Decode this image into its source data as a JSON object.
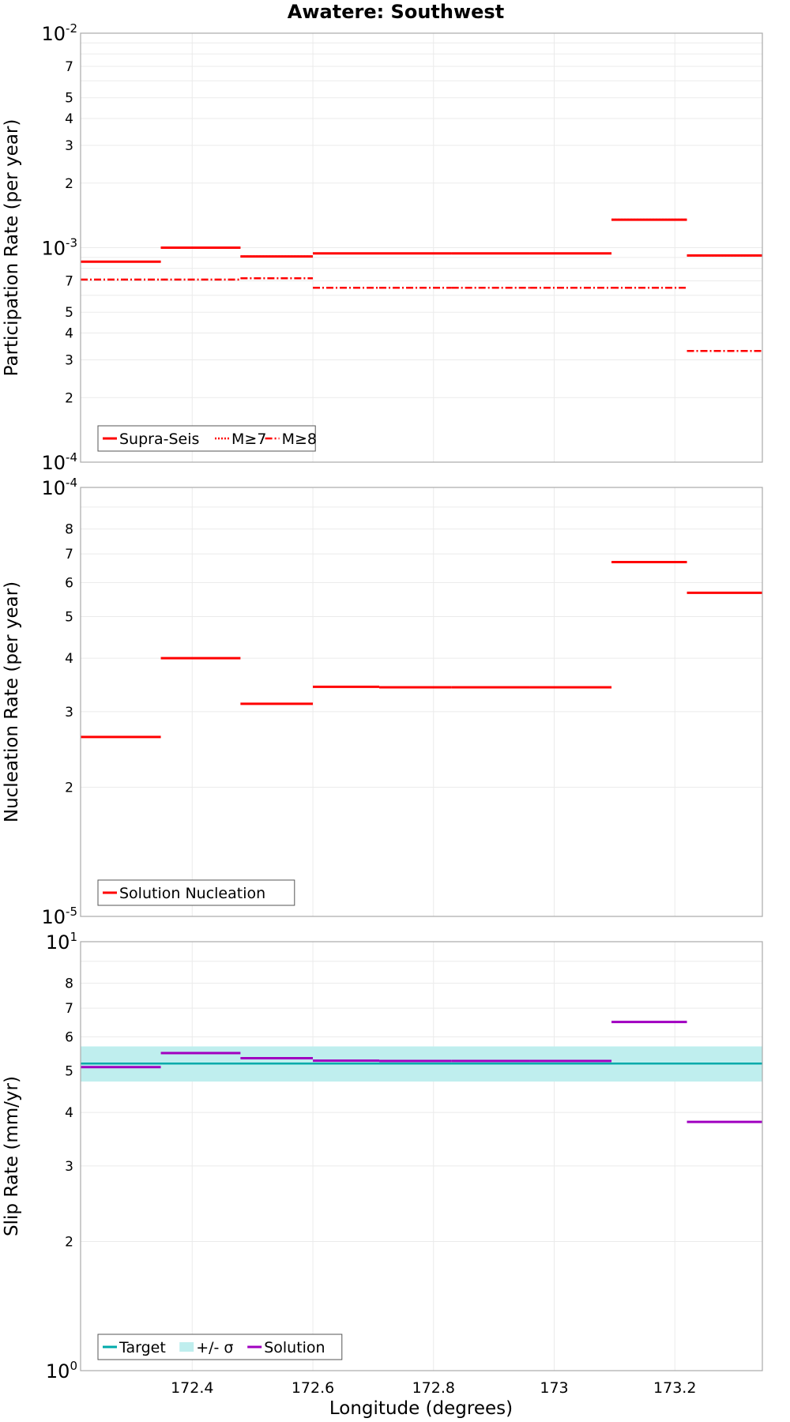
{
  "chart_data": {
    "type": "line",
    "title": "Awatere: Southwest",
    "xlabel": "Longitude (degrees)",
    "xlim": [
      172.215,
      173.345
    ],
    "x_ticks": [
      172.4,
      172.6,
      172.8,
      173.0,
      173.2
    ],
    "x_tick_labels": [
      "172.4",
      "172.6",
      "172.8",
      "173",
      "173.2"
    ],
    "segment_edges": [
      172.215,
      172.348,
      172.48,
      172.6,
      172.71,
      172.83,
      172.96,
      173.095,
      173.22,
      173.345
    ],
    "panels": [
      {
        "name": "participation",
        "ylabel": "Participation Rate (per year)",
        "yscale": "log",
        "ylim": [
          0.0001,
          0.01
        ],
        "major_tick_labels": [
          {
            "base": "10",
            "exp": "-2",
            "value": 0.01
          },
          {
            "base": "10",
            "exp": "-3",
            "value": 0.001
          },
          {
            "base": "10",
            "exp": "-4",
            "value": 0.0001
          }
        ],
        "minor_tick_labels": [
          "7",
          "5",
          "4",
          "3",
          "2",
          "7",
          "5",
          "4",
          "3",
          "2"
        ],
        "minor_tick_values": [
          0.007,
          0.005,
          0.004,
          0.003,
          0.002,
          0.0007,
          0.0005,
          0.0004,
          0.0003,
          0.0002
        ],
        "series": [
          {
            "name": "Supra-Seis",
            "style": "solid",
            "color": "#ff0000",
            "values": [
              0.00086,
              0.001,
              0.00091,
              0.00094,
              0.00094,
              0.00094,
              0.00094,
              0.00135,
              0.00092
            ]
          },
          {
            "name": "M≥7",
            "style": "dotted",
            "color": "#ff0000",
            "values": [
              0.00086,
              0.001,
              0.00091,
              0.00094,
              0.00094,
              0.00094,
              0.00094,
              0.00135,
              0.00092
            ]
          },
          {
            "name": "M≥8",
            "style": "dashdot",
            "color": "#ff0000",
            "values": [
              0.00071,
              0.00071,
              0.00072,
              0.00065,
              0.00065,
              0.00065,
              0.00065,
              0.00065,
              0.00033
            ]
          }
        ],
        "legend": [
          "Supra-Seis",
          "M≥7",
          "M≥8"
        ]
      },
      {
        "name": "nucleation",
        "ylabel": "Nucleation Rate (per year)",
        "yscale": "log",
        "ylim": [
          1e-05,
          0.0001
        ],
        "major_tick_labels": [
          {
            "base": "10",
            "exp": "-4",
            "value": 0.0001
          },
          {
            "base": "10",
            "exp": "-5",
            "value": 1e-05
          }
        ],
        "minor_tick_labels": [
          "8",
          "7",
          "6",
          "5",
          "4",
          "3",
          "2"
        ],
        "minor_tick_values": [
          8e-05,
          7e-05,
          6e-05,
          5e-05,
          4e-05,
          3e-05,
          2e-05
        ],
        "series": [
          {
            "name": "Solution Nucleation",
            "style": "solid",
            "color": "#ff0000",
            "values": [
              2.62e-05,
              4e-05,
              3.13e-05,
              3.43e-05,
              3.42e-05,
              3.42e-05,
              3.42e-05,
              6.7e-05,
              5.68e-05
            ]
          }
        ],
        "legend": [
          "Solution Nucleation"
        ]
      },
      {
        "name": "slip",
        "ylabel": "Slip Rate (mm/yr)",
        "yscale": "log",
        "ylim": [
          1,
          10
        ],
        "major_tick_labels": [
          {
            "base": "10",
            "exp": "1",
            "value": 10
          },
          {
            "base": "10",
            "exp": "0",
            "value": 1
          }
        ],
        "minor_tick_labels": [
          "8",
          "7",
          "6",
          "5",
          "4",
          "3",
          "2"
        ],
        "minor_tick_values": [
          8,
          7,
          6,
          5,
          4,
          3,
          2
        ],
        "target": {
          "name": "Target",
          "value": 5.2,
          "color": "#00aaaa"
        },
        "band": {
          "name": "+/- σ",
          "low": 4.72,
          "high": 5.7,
          "color": "#bfeeee"
        },
        "series": [
          {
            "name": "Solution",
            "style": "solid",
            "color": "#a000c0",
            "values": [
              5.1,
              5.5,
              5.35,
              5.28,
              5.27,
              5.27,
              5.27,
              6.5,
              3.8
            ]
          }
        ],
        "legend": [
          "Target",
          "+/- σ",
          "Solution"
        ]
      }
    ]
  }
}
